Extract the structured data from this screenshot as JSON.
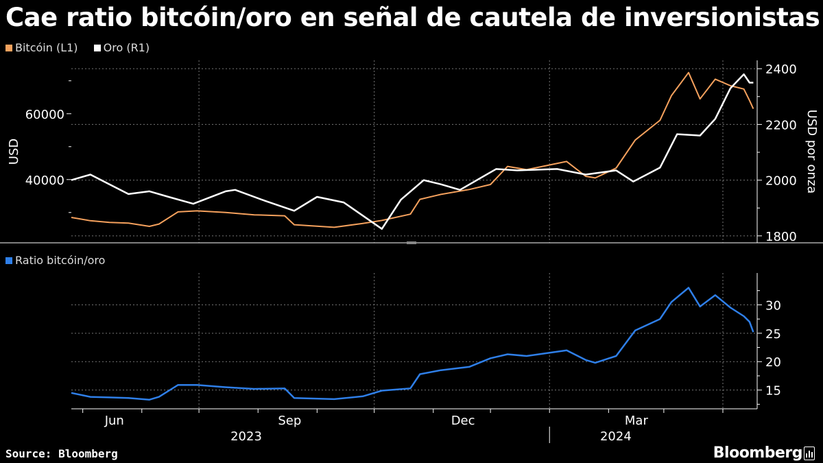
{
  "title": "Cae ratio bitcóin/oro en señal de cautela de inversionistas",
  "footer": {
    "source": "Source: Bloomberg",
    "brand": "Bloomberg"
  },
  "colors": {
    "bitcoin": "#f5a15d",
    "gold": "#ffffff",
    "ratio": "#2f7fe8",
    "grid": "#777777"
  },
  "chart_data": [
    {
      "type": "line",
      "legend": [
        {
          "label": "Bitcóin (L1)",
          "color": "#f5a15d"
        },
        {
          "label": "Oro (R1)",
          "color": "#ffffff"
        }
      ],
      "ylabel_left": "USD",
      "ylabel_right": "USD por onza",
      "yleft_ticks": [
        40000,
        60000
      ],
      "yright_ticks": [
        1800,
        2000,
        2200,
        2400
      ],
      "ylim_left": [
        20800,
        76200
      ],
      "ylim_right": [
        1775,
        2430
      ],
      "grid": true,
      "x_range": [
        "2023-04-25",
        "2024-04-19"
      ],
      "series": [
        {
          "name": "Bitcóin (L1)",
          "x": [
            "2023-04-25",
            "2023-05-05",
            "2023-05-15",
            "2023-05-25",
            "2023-06-05",
            "2023-06-10",
            "2023-06-20",
            "2023-06-30",
            "2023-07-15",
            "2023-07-30",
            "2023-08-15",
            "2023-08-20",
            "2023-09-10",
            "2023-09-25",
            "2023-10-05",
            "2023-10-20",
            "2023-10-25",
            "2023-11-05",
            "2023-11-20",
            "2023-12-01",
            "2023-12-10",
            "2023-12-20",
            "2024-01-10",
            "2024-01-20",
            "2024-01-25",
            "2024-02-05",
            "2024-02-15",
            "2024-02-28",
            "2024-03-05",
            "2024-03-14",
            "2024-03-20",
            "2024-03-28",
            "2024-04-05",
            "2024-04-12",
            "2024-04-15",
            "2024-04-17"
          ],
          "values": [
            28500,
            27500,
            27000,
            26800,
            25800,
            26500,
            30200,
            30500,
            30000,
            29300,
            29000,
            26300,
            25500,
            26700,
            27600,
            29500,
            34000,
            35500,
            37000,
            38500,
            44000,
            43000,
            45500,
            41000,
            40500,
            43500,
            52000,
            58000,
            65500,
            72500,
            64500,
            70500,
            68500,
            67500,
            64000,
            61500
          ]
        },
        {
          "name": "Oro (R1)",
          "x": [
            "2023-04-25",
            "2023-05-05",
            "2023-05-15",
            "2023-05-25",
            "2023-06-05",
            "2023-06-15",
            "2023-06-28",
            "2023-07-15",
            "2023-07-20",
            "2023-08-05",
            "2023-08-20",
            "2023-09-01",
            "2023-09-15",
            "2023-10-05",
            "2023-10-15",
            "2023-10-27",
            "2023-11-05",
            "2023-11-15",
            "2023-12-04",
            "2023-12-15",
            "2024-01-05",
            "2024-01-20",
            "2024-02-05",
            "2024-02-14",
            "2024-02-28",
            "2024-03-08",
            "2024-03-20",
            "2024-03-28",
            "2024-04-05",
            "2024-04-12",
            "2024-04-15",
            "2024-04-17"
          ],
          "values": [
            2000,
            2020,
            1985,
            1950,
            1960,
            1940,
            1915,
            1960,
            1965,
            1925,
            1890,
            1940,
            1920,
            1825,
            1930,
            2000,
            1985,
            1965,
            2040,
            2035,
            2040,
            2020,
            2035,
            1995,
            2045,
            2165,
            2160,
            2220,
            2330,
            2380,
            2350,
            2350
          ]
        }
      ]
    },
    {
      "type": "line",
      "legend": [
        {
          "label": "Ratio bitcóin/oro",
          "color": "#2f7fe8"
        }
      ],
      "y_ticks": [
        15,
        20,
        25,
        30
      ],
      "ylim": [
        11.7,
        35.6
      ],
      "grid": true,
      "x_range": [
        "2023-04-25",
        "2024-04-19"
      ],
      "x_tick_labels": [
        {
          "label": "Jun",
          "date": "2023-06-01"
        },
        {
          "label": "Sep",
          "date": "2023-09-01"
        },
        {
          "label": "Dec",
          "date": "2023-12-01"
        },
        {
          "label": "Mar",
          "date": "2024-03-01"
        }
      ],
      "x_year_labels": [
        {
          "label": "2023",
          "date": "2023-08-20"
        },
        {
          "label": "2024",
          "date": "2024-03-01"
        }
      ],
      "series": [
        {
          "name": "Ratio bitcóin/oro",
          "x": [
            "2023-04-25",
            "2023-05-05",
            "2023-05-15",
            "2023-05-25",
            "2023-06-05",
            "2023-06-10",
            "2023-06-20",
            "2023-06-30",
            "2023-07-15",
            "2023-07-30",
            "2023-08-15",
            "2023-08-20",
            "2023-09-10",
            "2023-09-25",
            "2023-10-05",
            "2023-10-20",
            "2023-10-25",
            "2023-11-05",
            "2023-11-20",
            "2023-12-01",
            "2023-12-10",
            "2023-12-20",
            "2024-01-10",
            "2024-01-20",
            "2024-01-25",
            "2024-02-05",
            "2024-02-15",
            "2024-02-28",
            "2024-03-05",
            "2024-03-14",
            "2024-03-20",
            "2024-03-28",
            "2024-04-05",
            "2024-04-12",
            "2024-04-15",
            "2024-04-17"
          ],
          "values": [
            14.5,
            13.8,
            13.7,
            13.6,
            13.3,
            13.8,
            15.9,
            15.9,
            15.5,
            15.2,
            15.3,
            13.6,
            13.4,
            13.9,
            14.9,
            15.3,
            17.8,
            18.5,
            19.1,
            20.6,
            21.3,
            21.0,
            22.0,
            20.3,
            19.8,
            21.0,
            25.5,
            27.5,
            30.5,
            33.0,
            29.7,
            31.7,
            29.5,
            28.0,
            27.0,
            25.2
          ]
        }
      ]
    }
  ]
}
